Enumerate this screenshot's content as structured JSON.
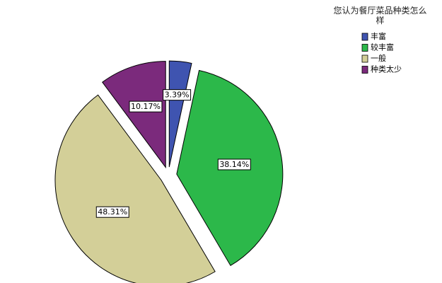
{
  "chart_data": {
    "type": "pie",
    "legend_title": "您认为餐厅菜品种类怎么样",
    "categories": [
      "丰富",
      "较丰富",
      "一般",
      "种类太少"
    ],
    "values": [
      3.39,
      38.14,
      48.31,
      10.17
    ],
    "value_labels": [
      "3.39%",
      "38.14%",
      "48.31%",
      "10.17%"
    ],
    "colors": [
      "#3f54b0",
      "#2cb84a",
      "#d3cf98",
      "#7b2a7c"
    ],
    "legend": "upper-right"
  }
}
